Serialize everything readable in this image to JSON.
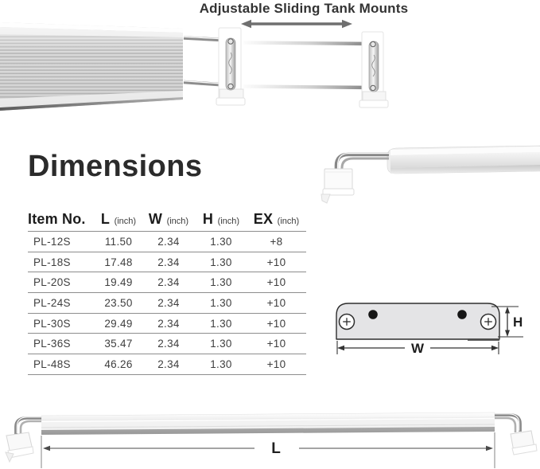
{
  "top_section": {
    "title": "Adjustable Sliding Tank Mounts"
  },
  "dimensions_section": {
    "heading": "Dimensions",
    "table": {
      "headers": [
        {
          "label": "Item No.",
          "unit": ""
        },
        {
          "label": "L",
          "unit": "(inch)"
        },
        {
          "label": "W",
          "unit": "(inch)"
        },
        {
          "label": "H",
          "unit": "(inch)"
        },
        {
          "label": "EX",
          "unit": "(inch)"
        }
      ],
      "rows": [
        {
          "item": "PL-12S",
          "l": "11.50",
          "w": "2.34",
          "h": "1.30",
          "ex": "+8"
        },
        {
          "item": "PL-18S",
          "l": "17.48",
          "w": "2.34",
          "h": "1.30",
          "ex": "+10"
        },
        {
          "item": "PL-20S",
          "l": "19.49",
          "w": "2.34",
          "h": "1.30",
          "ex": "+10"
        },
        {
          "item": "PL-24S",
          "l": "23.50",
          "w": "2.34",
          "h": "1.30",
          "ex": "+10"
        },
        {
          "item": "PL-30S",
          "l": "29.49",
          "w": "2.34",
          "h": "1.30",
          "ex": "+10"
        },
        {
          "item": "PL-36S",
          "l": "35.47",
          "w": "2.34",
          "h": "1.30",
          "ex": "+10"
        },
        {
          "item": "PL-48S",
          "l": "46.26",
          "w": "2.34",
          "h": "1.30",
          "ex": "+10"
        }
      ]
    }
  },
  "diagram_labels": {
    "height": "H",
    "width": "W",
    "length": "L"
  },
  "colors": {
    "title_text": "#333333",
    "heading_text": "#2b2b2b",
    "table_line": "#8d8d8d",
    "slide_arrow": "#6f6f6f",
    "bracket_fill": "#e4e4e6",
    "dimension_line": "#333333"
  }
}
